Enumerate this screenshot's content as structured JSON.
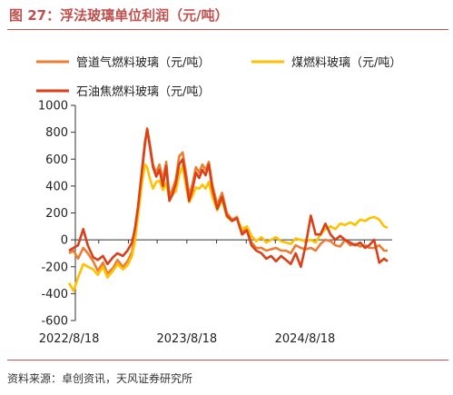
{
  "header": {
    "title": "图 27：浮法玻璃单位利润（元/吨）"
  },
  "footer": {
    "source": "资料来源：卓创资讯，天风证券研究所"
  },
  "chart_data": {
    "type": "line",
    "title": "图 27：浮法玻璃单位利润（元/吨）",
    "xlabel": "",
    "ylabel": "",
    "ylim": [
      -600,
      1000
    ],
    "yticks": [
      -600,
      -400,
      -200,
      0,
      200,
      400,
      600,
      800,
      1000
    ],
    "xticks": [
      {
        "label": "2022/8/18",
        "x": "2022-08-18"
      },
      {
        "label": "2023/8/18",
        "x": "2023-08-18"
      },
      {
        "label": "2024/8/18",
        "x": "2024-08-18"
      }
    ],
    "grid": false,
    "legend_position": "top",
    "series": [
      {
        "name": "管道气燃料玻璃（元/吨）",
        "color": "#ed7d31",
        "points": [
          [
            "2022-08-18",
            -100
          ],
          [
            "2022-09-01",
            -80
          ],
          [
            "2022-09-15",
            -140
          ],
          [
            "2022-10-01",
            -60
          ],
          [
            "2022-10-15",
            -100
          ],
          [
            "2022-11-01",
            -160
          ],
          [
            "2022-11-15",
            -230
          ],
          [
            "2022-12-01",
            -170
          ],
          [
            "2022-12-15",
            -250
          ],
          [
            "2023-01-01",
            -210
          ],
          [
            "2023-01-15",
            -150
          ],
          [
            "2023-02-01",
            -200
          ],
          [
            "2023-02-15",
            -160
          ],
          [
            "2023-03-01",
            -90
          ],
          [
            "2023-03-10",
            40
          ],
          [
            "2023-03-20",
            230
          ],
          [
            "2023-04-01",
            500
          ],
          [
            "2023-04-10",
            700
          ],
          [
            "2023-04-17",
            830
          ],
          [
            "2023-04-25",
            720
          ],
          [
            "2023-05-05",
            560
          ],
          [
            "2023-05-15",
            500
          ],
          [
            "2023-05-25",
            560
          ],
          [
            "2023-06-05",
            450
          ],
          [
            "2023-06-15",
            580
          ],
          [
            "2023-06-25",
            320
          ],
          [
            "2023-07-05",
            380
          ],
          [
            "2023-07-15",
            450
          ],
          [
            "2023-07-25",
            620
          ],
          [
            "2023-08-05",
            650
          ],
          [
            "2023-08-15",
            500
          ],
          [
            "2023-08-25",
            330
          ],
          [
            "2023-09-05",
            420
          ],
          [
            "2023-09-15",
            540
          ],
          [
            "2023-09-25",
            500
          ],
          [
            "2023-10-05",
            560
          ],
          [
            "2023-10-15",
            520
          ],
          [
            "2023-10-25",
            580
          ],
          [
            "2023-11-05",
            410
          ],
          [
            "2023-11-20",
            260
          ],
          [
            "2023-12-05",
            350
          ],
          [
            "2023-12-20",
            200
          ],
          [
            "2024-01-05",
            150
          ],
          [
            "2024-01-20",
            170
          ],
          [
            "2024-02-05",
            60
          ],
          [
            "2024-02-20",
            80
          ],
          [
            "2024-03-05",
            -20
          ],
          [
            "2024-03-20",
            -60
          ],
          [
            "2024-04-05",
            -60
          ],
          [
            "2024-04-20",
            -80
          ],
          [
            "2024-05-05",
            -70
          ],
          [
            "2024-05-20",
            -60
          ],
          [
            "2024-06-05",
            -80
          ],
          [
            "2024-06-20",
            -80
          ],
          [
            "2024-07-05",
            -100
          ],
          [
            "2024-07-20",
            -40
          ],
          [
            "2024-08-05",
            -60
          ],
          [
            "2024-08-20",
            -70
          ],
          [
            "2024-09-05",
            -60
          ],
          [
            "2024-09-20",
            -80
          ],
          [
            "2024-10-05",
            -30
          ],
          [
            "2024-10-20",
            0
          ],
          [
            "2024-11-05",
            -10
          ],
          [
            "2024-11-20",
            -40
          ],
          [
            "2024-12-05",
            -50
          ],
          [
            "2024-12-20",
            0
          ],
          [
            "2025-01-05",
            -40
          ],
          [
            "2025-01-20",
            -30
          ],
          [
            "2025-02-05",
            -50
          ],
          [
            "2025-02-20",
            -40
          ],
          [
            "2025-03-05",
            -60
          ],
          [
            "2025-03-20",
            -60
          ],
          [
            "2025-04-05",
            -40
          ],
          [
            "2025-04-20",
            -80
          ],
          [
            "2025-05-01",
            -80
          ]
        ]
      },
      {
        "name": "煤燃料玻璃（元/吨）",
        "color": "#ffc000",
        "points": [
          [
            "2022-08-18",
            -320
          ],
          [
            "2022-09-01",
            -380
          ],
          [
            "2022-09-15",
            -280
          ],
          [
            "2022-10-01",
            -180
          ],
          [
            "2022-10-15",
            -200
          ],
          [
            "2022-11-01",
            -220
          ],
          [
            "2022-11-15",
            -260
          ],
          [
            "2022-12-01",
            -200
          ],
          [
            "2022-12-15",
            -280
          ],
          [
            "2023-01-01",
            -230
          ],
          [
            "2023-01-15",
            -180
          ],
          [
            "2023-02-01",
            -220
          ],
          [
            "2023-02-15",
            -190
          ],
          [
            "2023-03-01",
            -120
          ],
          [
            "2023-03-10",
            -10
          ],
          [
            "2023-03-20",
            180
          ],
          [
            "2023-04-01",
            420
          ],
          [
            "2023-04-10",
            560
          ],
          [
            "2023-04-17",
            540
          ],
          [
            "2023-04-25",
            460
          ],
          [
            "2023-05-05",
            380
          ],
          [
            "2023-05-15",
            430
          ],
          [
            "2023-05-25",
            440
          ],
          [
            "2023-06-05",
            370
          ],
          [
            "2023-06-15",
            420
          ],
          [
            "2023-06-25",
            300
          ],
          [
            "2023-07-05",
            340
          ],
          [
            "2023-07-15",
            360
          ],
          [
            "2023-07-25",
            480
          ],
          [
            "2023-08-05",
            550
          ],
          [
            "2023-08-15",
            400
          ],
          [
            "2023-08-25",
            280
          ],
          [
            "2023-09-05",
            330
          ],
          [
            "2023-09-15",
            390
          ],
          [
            "2023-09-25",
            380
          ],
          [
            "2023-10-05",
            410
          ],
          [
            "2023-10-15",
            380
          ],
          [
            "2023-10-25",
            430
          ],
          [
            "2023-11-05",
            320
          ],
          [
            "2023-11-20",
            220
          ],
          [
            "2023-12-05",
            300
          ],
          [
            "2023-12-20",
            170
          ],
          [
            "2024-01-05",
            140
          ],
          [
            "2024-01-20",
            160
          ],
          [
            "2024-02-05",
            80
          ],
          [
            "2024-02-20",
            100
          ],
          [
            "2024-03-05",
            30
          ],
          [
            "2024-03-20",
            -10
          ],
          [
            "2024-04-05",
            20
          ],
          [
            "2024-04-20",
            -20
          ],
          [
            "2024-05-05",
            0
          ],
          [
            "2024-05-20",
            20
          ],
          [
            "2024-06-05",
            -10
          ],
          [
            "2024-06-20",
            -20
          ],
          [
            "2024-07-05",
            -30
          ],
          [
            "2024-07-20",
            10
          ],
          [
            "2024-08-05",
            0
          ],
          [
            "2024-08-20",
            -10
          ],
          [
            "2024-09-05",
            0
          ],
          [
            "2024-09-20",
            -20
          ],
          [
            "2024-10-05",
            40
          ],
          [
            "2024-10-20",
            80
          ],
          [
            "2024-11-05",
            100
          ],
          [
            "2024-11-20",
            80
          ],
          [
            "2024-12-05",
            120
          ],
          [
            "2024-12-20",
            110
          ],
          [
            "2025-01-05",
            130
          ],
          [
            "2025-01-20",
            110
          ],
          [
            "2025-02-05",
            150
          ],
          [
            "2025-02-20",
            140
          ],
          [
            "2025-03-05",
            160
          ],
          [
            "2025-03-20",
            170
          ],
          [
            "2025-04-05",
            150
          ],
          [
            "2025-04-20",
            100
          ],
          [
            "2025-05-01",
            90
          ]
        ]
      },
      {
        "name": "石油焦燃料玻璃（元/吨）",
        "color": "#d9401a",
        "points": [
          [
            "2022-08-18",
            -80
          ],
          [
            "2022-09-01",
            -60
          ],
          [
            "2022-09-15",
            -40
          ],
          [
            "2022-10-01",
            80
          ],
          [
            "2022-10-15",
            -40
          ],
          [
            "2022-11-01",
            -130
          ],
          [
            "2022-11-15",
            -150
          ],
          [
            "2022-12-01",
            -120
          ],
          [
            "2022-12-15",
            -180
          ],
          [
            "2023-01-01",
            -130
          ],
          [
            "2023-01-15",
            -100
          ],
          [
            "2023-02-01",
            -120
          ],
          [
            "2023-02-15",
            -80
          ],
          [
            "2023-03-01",
            -20
          ],
          [
            "2023-03-10",
            80
          ],
          [
            "2023-03-20",
            250
          ],
          [
            "2023-04-01",
            520
          ],
          [
            "2023-04-10",
            720
          ],
          [
            "2023-04-17",
            820
          ],
          [
            "2023-04-25",
            700
          ],
          [
            "2023-05-05",
            540
          ],
          [
            "2023-05-15",
            470
          ],
          [
            "2023-05-25",
            520
          ],
          [
            "2023-06-05",
            400
          ],
          [
            "2023-06-15",
            550
          ],
          [
            "2023-06-25",
            290
          ],
          [
            "2023-07-05",
            340
          ],
          [
            "2023-07-15",
            420
          ],
          [
            "2023-07-25",
            560
          ],
          [
            "2023-08-05",
            600
          ],
          [
            "2023-08-15",
            460
          ],
          [
            "2023-08-25",
            290
          ],
          [
            "2023-09-05",
            380
          ],
          [
            "2023-09-15",
            500
          ],
          [
            "2023-09-25",
            460
          ],
          [
            "2023-10-05",
            520
          ],
          [
            "2023-10-15",
            480
          ],
          [
            "2023-10-25",
            560
          ],
          [
            "2023-11-05",
            380
          ],
          [
            "2023-11-20",
            230
          ],
          [
            "2023-12-05",
            320
          ],
          [
            "2023-12-20",
            180
          ],
          [
            "2024-01-05",
            140
          ],
          [
            "2024-01-20",
            160
          ],
          [
            "2024-02-05",
            40
          ],
          [
            "2024-02-20",
            70
          ],
          [
            "2024-03-05",
            -40
          ],
          [
            "2024-03-20",
            -80
          ],
          [
            "2024-04-05",
            -100
          ],
          [
            "2024-04-20",
            -140
          ],
          [
            "2024-05-05",
            -120
          ],
          [
            "2024-05-20",
            -160
          ],
          [
            "2024-06-05",
            -120
          ],
          [
            "2024-06-20",
            -150
          ],
          [
            "2024-07-05",
            -180
          ],
          [
            "2024-07-20",
            -100
          ],
          [
            "2024-08-05",
            -200
          ],
          [
            "2024-08-20",
            -40
          ],
          [
            "2024-09-05",
            180
          ],
          [
            "2024-09-20",
            40
          ],
          [
            "2024-10-05",
            40
          ],
          [
            "2024-10-20",
            120
          ],
          [
            "2024-11-05",
            40
          ],
          [
            "2024-11-20",
            0
          ],
          [
            "2024-12-05",
            30
          ],
          [
            "2024-12-20",
            0
          ],
          [
            "2025-01-05",
            -20
          ],
          [
            "2025-01-20",
            -40
          ],
          [
            "2025-02-05",
            -20
          ],
          [
            "2025-02-20",
            -60
          ],
          [
            "2025-03-05",
            -40
          ],
          [
            "2025-03-20",
            0
          ],
          [
            "2025-04-05",
            -170
          ],
          [
            "2025-04-20",
            -140
          ],
          [
            "2025-05-01",
            -160
          ]
        ]
      }
    ]
  }
}
